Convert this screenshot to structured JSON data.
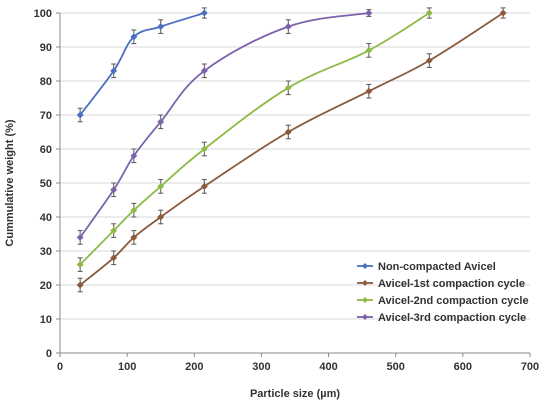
{
  "chart_data": {
    "type": "line",
    "title": "",
    "xlabel": "Particle size (µm)",
    "ylabel": "Cummulative weight (%)",
    "xlim": [
      0,
      700
    ],
    "ylim": [
      0,
      100
    ],
    "x_ticks": [
      0,
      100,
      200,
      300,
      400,
      500,
      600,
      700
    ],
    "y_ticks": [
      0,
      10,
      20,
      30,
      40,
      50,
      60,
      70,
      80,
      90,
      100
    ],
    "grid": "horizontal",
    "legend_position": "bottom-right",
    "error_bars": true,
    "series": [
      {
        "name": "Non-compacted Avicel",
        "color": "#4a6fc1",
        "x": [
          30,
          80,
          110,
          150,
          215
        ],
        "y": [
          70,
          83,
          93,
          96,
          100
        ],
        "err": [
          2,
          2,
          2,
          2,
          1.5
        ]
      },
      {
        "name": "Avicel-1st compaction cycle",
        "color": "#8b5a3c",
        "x": [
          30,
          80,
          110,
          150,
          215,
          340,
          460,
          550,
          660
        ],
        "y": [
          20,
          28,
          34,
          40,
          49,
          65,
          77,
          86,
          100
        ],
        "err": [
          2,
          2,
          2,
          2,
          2,
          2,
          2,
          2,
          1.5
        ]
      },
      {
        "name": "Avicel-2nd compaction cycle",
        "color": "#8dba48",
        "x": [
          30,
          80,
          110,
          150,
          215,
          340,
          460,
          550
        ],
        "y": [
          26,
          36,
          42,
          49,
          60,
          78,
          89,
          100
        ],
        "err": [
          2,
          2,
          2,
          2,
          2,
          2,
          2,
          1.5
        ]
      },
      {
        "name": "Avicel-3rd compaction cycle",
        "color": "#7b62aa",
        "x": [
          30,
          80,
          110,
          150,
          215,
          340,
          460
        ],
        "y": [
          34,
          48,
          58,
          68,
          83,
          96,
          100
        ],
        "err": [
          2,
          2,
          2,
          2,
          2,
          2,
          1
        ]
      }
    ]
  }
}
